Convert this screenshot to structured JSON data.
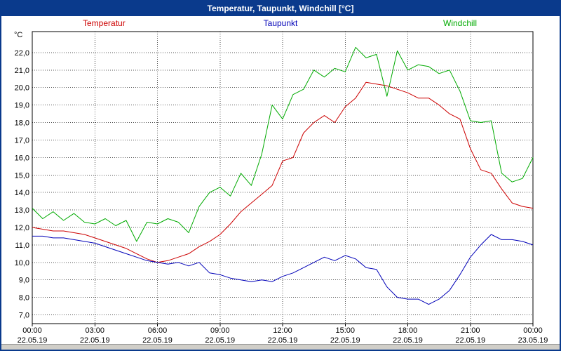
{
  "window": {
    "title": "Temperatur, Taupunkt, Windchill [°C]"
  },
  "chart_data": {
    "type": "line",
    "title": "Temperatur, Taupunkt, Windchill [°C]",
    "y_unit": "°C",
    "xlabel": "",
    "ylabel": "°C",
    "grid": true,
    "legend_position": "top",
    "xlim": [
      0,
      24
    ],
    "ylim": [
      6.5,
      23.2
    ],
    "x": [
      0,
      0.5,
      1,
      1.5,
      2,
      2.5,
      3,
      3.5,
      4,
      4.5,
      5,
      5.5,
      6,
      6.5,
      7,
      7.5,
      8,
      8.5,
      9,
      9.5,
      10,
      10.5,
      11,
      11.5,
      12,
      12.5,
      13,
      13.5,
      14,
      14.5,
      15,
      15.5,
      16,
      16.5,
      17,
      17.5,
      18,
      18.5,
      19,
      19.5,
      20,
      20.5,
      21,
      21.5,
      22,
      22.5,
      23,
      23.5,
      24
    ],
    "series": [
      {
        "name": "Temperatur",
        "color": "#cc0000",
        "values": [
          12.0,
          11.9,
          11.8,
          11.8,
          11.7,
          11.6,
          11.4,
          11.2,
          11.0,
          10.8,
          10.5,
          10.2,
          10.0,
          10.1,
          10.3,
          10.5,
          10.9,
          11.2,
          11.6,
          12.2,
          12.9,
          13.4,
          13.9,
          14.4,
          15.8,
          16.0,
          17.4,
          18.0,
          18.4,
          18.0,
          18.9,
          19.4,
          20.3,
          20.2,
          20.1,
          19.9,
          19.7,
          19.4,
          19.4,
          19.0,
          18.5,
          18.2,
          16.5,
          15.3,
          15.1,
          14.2,
          13.4,
          13.2,
          13.1
        ]
      },
      {
        "name": "Taupunkt",
        "color": "#0000b8",
        "values": [
          11.5,
          11.5,
          11.4,
          11.4,
          11.3,
          11.2,
          11.1,
          10.9,
          10.7,
          10.5,
          10.3,
          10.1,
          10.0,
          9.9,
          10.0,
          9.8,
          10.0,
          9.4,
          9.3,
          9.1,
          9.0,
          8.9,
          9.0,
          8.9,
          9.2,
          9.4,
          9.7,
          10.0,
          10.3,
          10.1,
          10.4,
          10.2,
          9.7,
          9.6,
          8.6,
          8.0,
          7.9,
          7.9,
          7.6,
          7.9,
          8.4,
          9.3,
          10.3,
          11.0,
          11.6,
          11.3,
          11.3,
          11.2,
          11.0
        ]
      },
      {
        "name": "Windchill",
        "color": "#00aa00",
        "values": [
          13.1,
          12.5,
          12.9,
          12.4,
          12.8,
          12.3,
          12.2,
          12.5,
          12.1,
          12.4,
          11.2,
          12.3,
          12.2,
          12.5,
          12.3,
          11.7,
          13.2,
          14.0,
          14.3,
          13.8,
          15.1,
          14.4,
          16.2,
          19.0,
          18.2,
          19.6,
          19.9,
          21.0,
          20.6,
          21.1,
          20.9,
          22.3,
          21.7,
          21.9,
          19.5,
          22.1,
          21.0,
          21.3,
          21.2,
          20.8,
          21.0,
          19.8,
          18.1,
          18.0,
          18.1,
          15.1,
          14.6,
          14.8,
          16.0
        ]
      }
    ],
    "y_ticks": {
      "values": [
        22,
        21,
        20,
        19,
        18,
        17,
        16,
        15,
        14,
        13,
        12,
        11,
        10,
        9,
        8,
        7
      ],
      "labels": [
        "22,0",
        "21,0",
        "20,0",
        "19,0",
        "18,0",
        "17,0",
        "16,0",
        "15,0",
        "14,0",
        "13,0",
        "12,0",
        "11,0",
        "10,0",
        "9,0",
        "8,0",
        "7,0"
      ]
    },
    "x_ticks": {
      "hours": [
        0,
        3,
        6,
        9,
        12,
        15,
        18,
        21,
        24
      ],
      "times": [
        "00:00",
        "03:00",
        "06:00",
        "09:00",
        "12:00",
        "15:00",
        "18:00",
        "21:00",
        "00:00"
      ],
      "dates": [
        "22.05.19",
        "22.05.19",
        "22.05.19",
        "22.05.19",
        "22.05.19",
        "22.05.19",
        "22.05.19",
        "22.05.19",
        "23.05.19"
      ]
    }
  },
  "colors": {
    "titlebar": "#0a3a8c",
    "window_border": "#0a3a8c",
    "plot_background": "#ffffff",
    "plot_border": "#000000",
    "grid": "#555555",
    "bottom_strip": "#d0cec8",
    "temperatur": "#cc0000",
    "taupunkt": "#0000b8",
    "windchill": "#00aa00"
  }
}
